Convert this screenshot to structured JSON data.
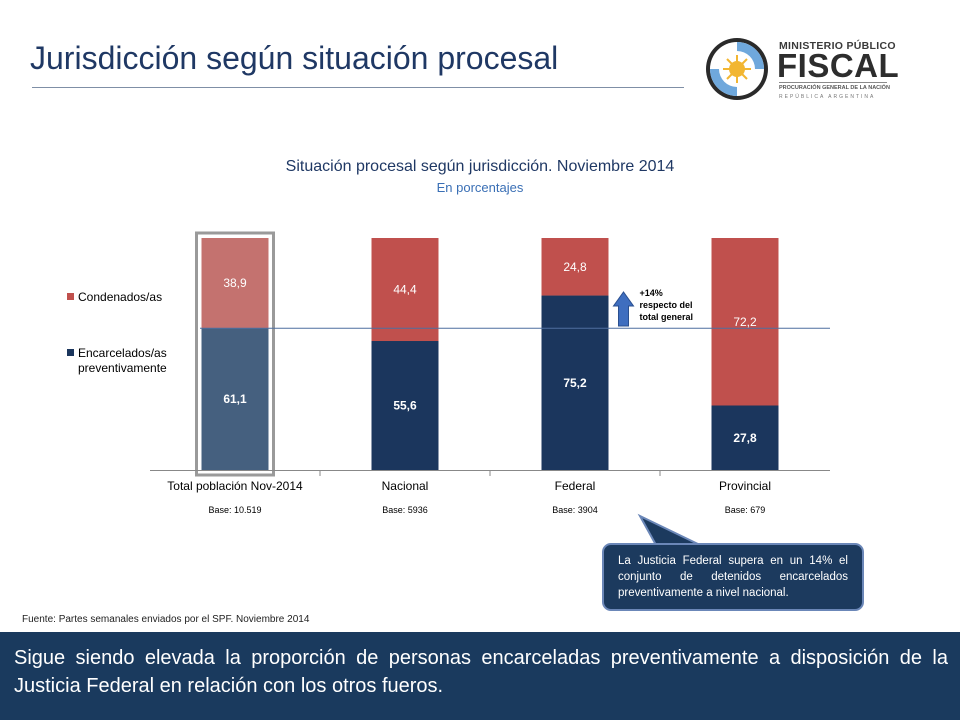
{
  "slide": {
    "title": "Jurisdicción según situación procesal"
  },
  "logo": {
    "line1": "MINISTERIO PÚBLICO",
    "line2": "FISCAL",
    "line3": "PROCURACIÓN GENERAL DE LA NACIÓN",
    "line4": "REPÚBLICA ARGENTINA"
  },
  "chart_data": {
    "type": "bar",
    "stacked": true,
    "title": "Situación procesal según jurisdicción. Noviembre 2014",
    "subtitle": "En porcentajes",
    "categories": [
      "Total población Nov-2014",
      "Nacional",
      "Federal",
      "Provincial"
    ],
    "bases": [
      "Base: 10.519",
      "Base: 5936",
      "Base: 3904",
      "Base: 679"
    ],
    "ylim": [
      0,
      100
    ],
    "series": [
      {
        "name": "Encarcelados/as preventivamente",
        "values": [
          61.1,
          55.6,
          75.2,
          27.8
        ],
        "labels": [
          "61,1",
          "55,6",
          "75,2",
          "27,8"
        ],
        "color": "#1b365d",
        "highlight_color": "#45607f"
      },
      {
        "name": "Condenados/as",
        "values": [
          38.9,
          44.4,
          24.8,
          72.2
        ],
        "labels": [
          "38,9",
          "44,4",
          "24,8",
          "72,2"
        ],
        "color": "#c0504d",
        "highlight_color": "#c4726f"
      }
    ],
    "highlighted_category": "Total población Nov-2014",
    "reference_line": 61.1,
    "legend_position": "left",
    "annotation": {
      "text_lines": [
        "+14%",
        "respecto del",
        "total general"
      ],
      "category": "Federal"
    }
  },
  "source": "Fuente: Partes semanales enviados por el SPF. Noviembre 2014",
  "callout": "La Justicia Federal supera en un 14% el conjunto de detenidos encarcelados preventivamente a nivel nacional.",
  "bottom_text": "Sigue siendo elevada la proporción de personas encarceladas preventivamente a disposición de la Justicia Federal en relación con los otros fueros.",
  "colors": {
    "title": "#1f3864",
    "bottom_bar": "#1a3a5e",
    "highlight_frame": "#9a9a9a"
  }
}
